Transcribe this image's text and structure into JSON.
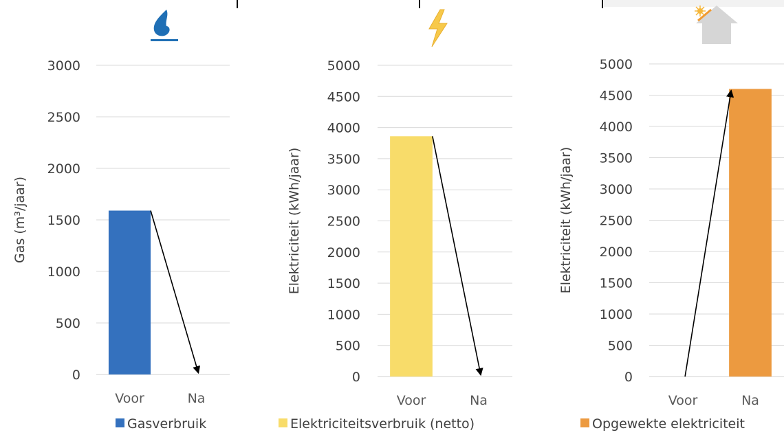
{
  "chart_data": [
    {
      "type": "bar",
      "icon": "gas-flame-icon",
      "categories": [
        "Voor",
        "Na"
      ],
      "series": [
        {
          "name": "Gasverbruik",
          "values": [
            1590,
            0
          ],
          "color": "#3471BE"
        }
      ],
      "ylabel": "Gas (m³/jaar)",
      "ylim": [
        0,
        3000
      ],
      "yticks": [
        0,
        500,
        1000,
        1500,
        2000,
        2500,
        3000
      ],
      "grid": true,
      "legend": "bottom",
      "arrow": {
        "from": "Voor",
        "to": "Na",
        "direction": "down"
      }
    },
    {
      "type": "bar",
      "icon": "lightning-bolt-icon",
      "categories": [
        "Voor",
        "Na"
      ],
      "series": [
        {
          "name": "Elektriciteitsverbruik (netto)",
          "values": [
            3860,
            0
          ],
          "color": "#F8DC6A"
        }
      ],
      "ylabel": "Elektriciteit (kWh/jaar)",
      "ylim": [
        0,
        5000
      ],
      "yticks": [
        0,
        500,
        1000,
        1500,
        2000,
        2500,
        3000,
        3500,
        4000,
        4500,
        5000
      ],
      "grid": true,
      "legend": "bottom",
      "arrow": {
        "from": "Voor",
        "to": "Na",
        "direction": "down"
      }
    },
    {
      "type": "bar",
      "icon": "solar-house-icon",
      "categories": [
        "Voor",
        "Na"
      ],
      "series": [
        {
          "name": "Opgewekte elektriciteit",
          "values": [
            0,
            4600
          ],
          "color": "#EC9A40"
        }
      ],
      "ylabel": "Elektriciteit (kWh/jaar)",
      "ylim": [
        0,
        5000
      ],
      "yticks": [
        0,
        500,
        1000,
        1500,
        2000,
        2500,
        3000,
        3500,
        4000,
        4500,
        5000
      ],
      "grid": true,
      "legend": "bottom",
      "arrow": {
        "from": "Voor",
        "to": "Na",
        "direction": "up"
      }
    }
  ]
}
